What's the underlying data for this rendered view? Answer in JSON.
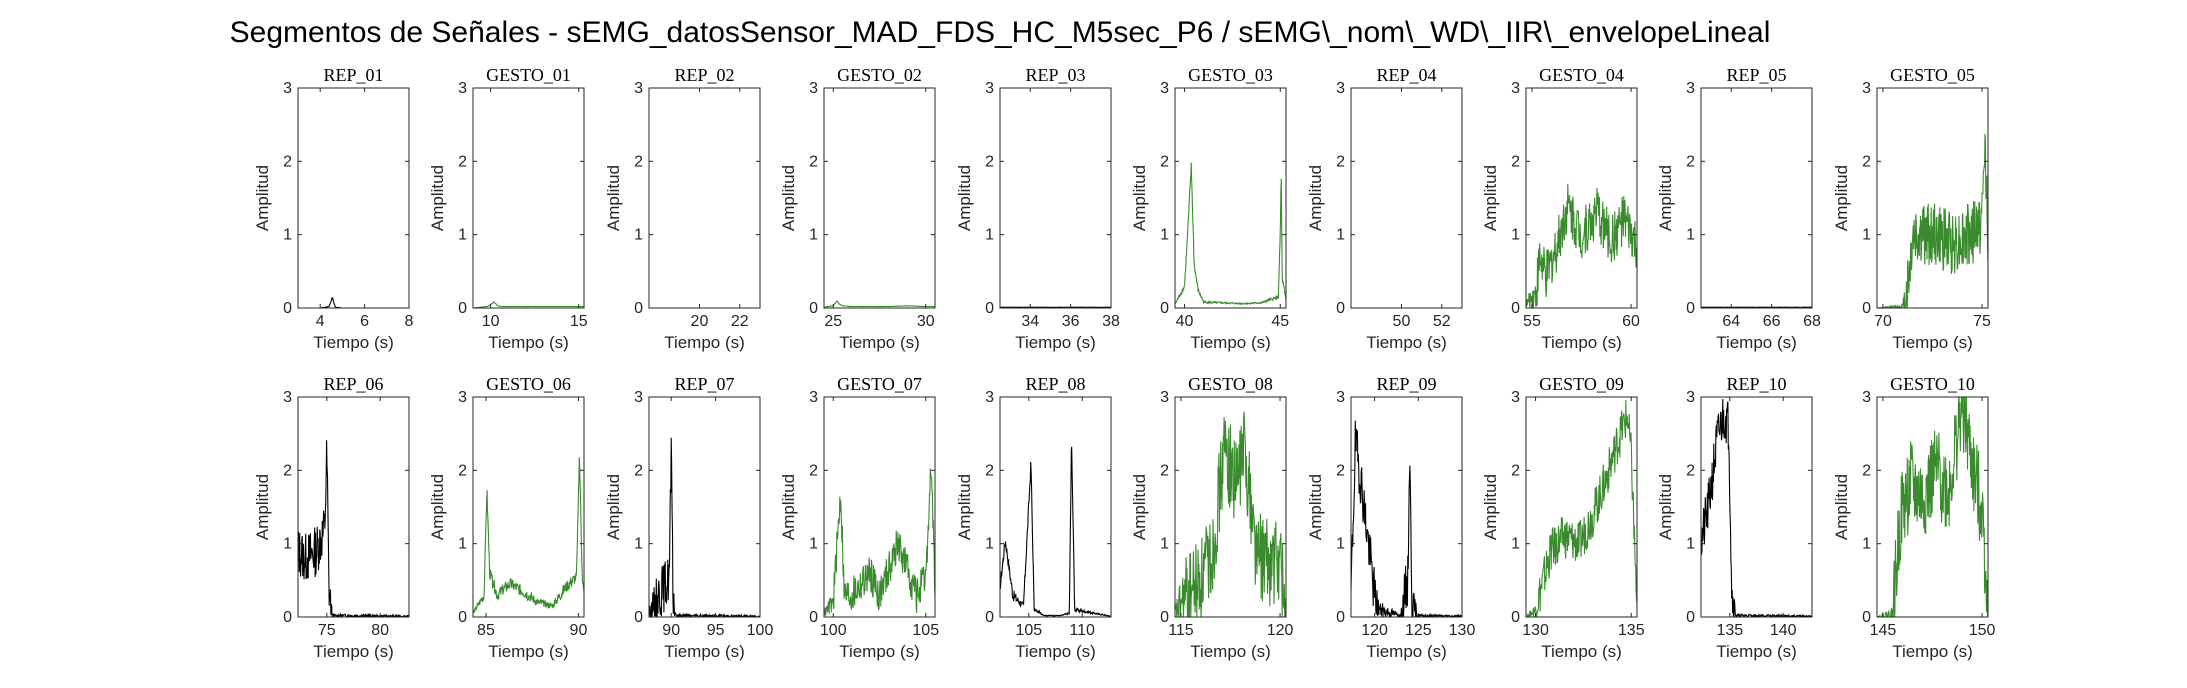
{
  "figure": {
    "title": "Segmentos de Señales - sEMG_datosSensor_MAD_FDS_HC_M5sec_P6 / sEMG\\_nom\\_WD\\_IIR\\_envelopeLineal"
  },
  "colors": {
    "rep": "#000000",
    "gesto": "#3a8a2e",
    "axis": "#262626"
  },
  "chart_data": [
    {
      "type": "line",
      "title": "REP_01",
      "xlabel": "Tiempo (s)",
      "ylabel": "Amplitud",
      "xlim": [
        3,
        8
      ],
      "ylim": [
        0,
        3
      ],
      "xticks": [
        4,
        6,
        8
      ],
      "yticks": [
        0,
        1,
        2,
        3
      ],
      "color": "#000000",
      "signal": "rep_small",
      "x": [
        3.0,
        4.0,
        4.4,
        4.5,
        4.55,
        4.62,
        4.7,
        5.0,
        8.0
      ],
      "y": [
        0.0,
        0.0,
        0.02,
        0.1,
        0.15,
        0.06,
        0.01,
        0.0,
        0.0
      ]
    },
    {
      "type": "line",
      "title": "GESTO_01",
      "xlabel": "Tiempo (s)",
      "ylabel": "Amplitud",
      "xlim": [
        9,
        15.3
      ],
      "ylim": [
        0,
        3
      ],
      "xticks": [
        10,
        15
      ],
      "yticks": [
        0,
        1,
        2,
        3
      ],
      "color": "#3a8a2e",
      "signal": "quiet",
      "x": [
        9.0,
        9.8,
        10.0,
        10.2,
        10.4,
        10.6,
        11,
        12,
        13,
        14,
        15,
        15.3
      ],
      "y": [
        0.0,
        0.02,
        0.05,
        0.08,
        0.03,
        0.02,
        0.02,
        0.02,
        0.02,
        0.02,
        0.02,
        0.02
      ]
    },
    {
      "type": "line",
      "title": "REP_02",
      "xlabel": "Tiempo (s)",
      "ylabel": "Amplitud",
      "xlim": [
        17.5,
        23
      ],
      "ylim": [
        0,
        3
      ],
      "xticks": [
        20,
        22
      ],
      "yticks": [
        0,
        1,
        2,
        3
      ],
      "color": "#000000",
      "signal": "flat",
      "x": [
        17.5,
        23.0
      ],
      "y": [
        0.0,
        0.0
      ]
    },
    {
      "type": "line",
      "title": "GESTO_02",
      "xlabel": "Tiempo (s)",
      "ylabel": "Amplitud",
      "xlim": [
        24.5,
        30.5
      ],
      "ylim": [
        0,
        3
      ],
      "xticks": [
        25,
        30
      ],
      "yticks": [
        0,
        1,
        2,
        3
      ],
      "color": "#3a8a2e",
      "signal": "quiet",
      "x": [
        24.5,
        25.0,
        25.2,
        25.3,
        25.5,
        26,
        27,
        28,
        29,
        30,
        30.5
      ],
      "y": [
        0.01,
        0.03,
        0.1,
        0.06,
        0.03,
        0.02,
        0.02,
        0.02,
        0.03,
        0.02,
        0.02
      ]
    },
    {
      "type": "line",
      "title": "REP_03",
      "xlabel": "Tiempo (s)",
      "ylabel": "Amplitud",
      "xlim": [
        32.5,
        38
      ],
      "ylim": [
        0,
        3
      ],
      "xticks": [
        34,
        36,
        38
      ],
      "yticks": [
        0,
        1,
        2,
        3
      ],
      "color": "#000000",
      "signal": "flat",
      "x": [
        32.5,
        38.0
      ],
      "y": [
        0.01,
        0.01
      ]
    },
    {
      "type": "line",
      "title": "GESTO_03",
      "xlabel": "Tiempo (s)",
      "ylabel": "Amplitud",
      "xlim": [
        39.5,
        45.3
      ],
      "ylim": [
        0,
        3
      ],
      "xticks": [
        40,
        45
      ],
      "yticks": [
        0,
        1,
        2,
        3
      ],
      "color": "#3a8a2e",
      "signal": "two_peaks",
      "x": [
        39.5,
        40.0,
        40.2,
        40.35,
        40.5,
        40.7,
        41.0,
        42,
        43,
        44,
        44.9,
        45.0,
        45.05,
        45.1,
        45.3
      ],
      "y": [
        0.05,
        0.3,
        1.2,
        1.95,
        0.6,
        0.25,
        0.08,
        0.07,
        0.06,
        0.07,
        0.15,
        1.0,
        1.9,
        0.4,
        0.1
      ]
    },
    {
      "type": "line",
      "title": "REP_04",
      "xlabel": "Tiempo (s)",
      "ylabel": "Amplitud",
      "xlim": [
        47.5,
        53
      ],
      "ylim": [
        0,
        3
      ],
      "xticks": [
        50,
        52
      ],
      "yticks": [
        0,
        1,
        2,
        3
      ],
      "color": "#000000",
      "signal": "flat",
      "x": [
        47.5,
        53.0
      ],
      "y": [
        0.0,
        0.0
      ]
    },
    {
      "type": "line",
      "title": "GESTO_04",
      "xlabel": "Tiempo (s)",
      "ylabel": "Amplitud",
      "xlim": [
        54.7,
        60.3
      ],
      "ylim": [
        0,
        3
      ],
      "xticks": [
        55,
        60
      ],
      "yticks": [
        0,
        1,
        2,
        3
      ],
      "color": "#3a8a2e",
      "signal": "noisy_mid",
      "x": [
        54.7,
        55.2,
        55.4,
        55.7,
        56.2,
        56.8,
        57.5,
        58.3,
        59.0,
        59.6,
        60.0,
        60.3
      ],
      "y": [
        0.05,
        0.2,
        0.7,
        0.4,
        0.8,
        1.4,
        1.0,
        1.3,
        0.9,
        1.2,
        1.0,
        0.8
      ]
    },
    {
      "type": "line",
      "title": "REP_05",
      "xlabel": "Tiempo (s)",
      "ylabel": "Amplitud",
      "xlim": [
        62.5,
        68
      ],
      "ylim": [
        0,
        3
      ],
      "xticks": [
        64,
        66,
        68
      ],
      "yticks": [
        0,
        1,
        2,
        3
      ],
      "color": "#000000",
      "signal": "flat",
      "x": [
        62.5,
        68.0
      ],
      "y": [
        0.01,
        0.01
      ]
    },
    {
      "type": "line",
      "title": "GESTO_05",
      "xlabel": "Tiempo (s)",
      "ylabel": "Amplitud",
      "xlim": [
        69.7,
        75.3
      ],
      "ylim": [
        0,
        3
      ],
      "xticks": [
        70,
        75
      ],
      "yticks": [
        0,
        1,
        2,
        3
      ],
      "color": "#3a8a2e",
      "signal": "noisy_high",
      "x": [
        69.7,
        71.0,
        71.3,
        71.5,
        72.5,
        73.5,
        74.5,
        75.0,
        75.15,
        75.3
      ],
      "y": [
        0.0,
        0.02,
        0.4,
        1.0,
        1.0,
        0.9,
        1.0,
        1.2,
        2.25,
        1.0
      ]
    },
    {
      "type": "line",
      "title": "REP_06",
      "xlabel": "Tiempo (s)",
      "ylabel": "Amplitud",
      "xlim": [
        72.3,
        82.7
      ],
      "ylim": [
        0,
        3
      ],
      "xticks": [
        75,
        80
      ],
      "yticks": [
        0,
        1,
        2,
        3
      ],
      "color": "#000000",
      "signal": "burst_then_flat",
      "x": [
        72.3,
        73.0,
        74.0,
        74.8,
        75.0,
        75.2,
        75.5,
        82.7
      ],
      "y": [
        0.9,
        0.8,
        0.9,
        1.2,
        2.25,
        0.4,
        0.02,
        0.01
      ]
    },
    {
      "type": "line",
      "title": "GESTO_06",
      "xlabel": "Tiempo (s)",
      "ylabel": "Amplitud",
      "xlim": [
        84.3,
        90.3
      ],
      "ylim": [
        0,
        3
      ],
      "xticks": [
        85,
        90
      ],
      "yticks": [
        0,
        1,
        2,
        3
      ],
      "color": "#3a8a2e",
      "signal": "two_peaks_body",
      "x": [
        84.3,
        84.9,
        85.05,
        85.2,
        85.6,
        86.3,
        87.0,
        87.8,
        88.6,
        89.3,
        89.9,
        90.05,
        90.2,
        90.3
      ],
      "y": [
        0.05,
        0.3,
        1.75,
        0.6,
        0.3,
        0.45,
        0.35,
        0.2,
        0.15,
        0.4,
        0.55,
        2.25,
        0.6,
        0.3
      ]
    },
    {
      "type": "line",
      "title": "REP_07",
      "xlabel": "Tiempo (s)",
      "ylabel": "Amplitud",
      "xlim": [
        87.5,
        100
      ],
      "ylim": [
        0,
        3
      ],
      "xticks": [
        90,
        95,
        100
      ],
      "yticks": [
        0,
        1,
        2,
        3
      ],
      "color": "#000000",
      "signal": "burst_then_flat",
      "x": [
        87.5,
        88.5,
        89.5,
        89.8,
        90.0,
        90.2,
        90.5,
        100.0
      ],
      "y": [
        0.05,
        0.3,
        0.45,
        0.6,
        2.25,
        0.3,
        0.02,
        0.01
      ]
    },
    {
      "type": "line",
      "title": "GESTO_07",
      "xlabel": "Tiempo (s)",
      "ylabel": "Amplitud",
      "xlim": [
        99.5,
        105.5
      ],
      "ylim": [
        0,
        3
      ],
      "xticks": [
        100,
        105
      ],
      "yticks": [
        0,
        1,
        2,
        3
      ],
      "color": "#3a8a2e",
      "signal": "peaks_mid",
      "x": [
        99.5,
        100.0,
        100.4,
        100.6,
        101,
        102,
        102.5,
        103.5,
        104.5,
        105.0,
        105.3,
        105.5
      ],
      "y": [
        0.05,
        0.2,
        1.7,
        0.3,
        0.3,
        0.6,
        0.3,
        1.0,
        0.3,
        0.5,
        2.1,
        0.3
      ]
    },
    {
      "type": "line",
      "title": "REP_08",
      "xlabel": "Tiempo (s)",
      "ylabel": "Amplitud",
      "xlim": [
        102.3,
        112.7
      ],
      "ylim": [
        0,
        3
      ],
      "xticks": [
        105,
        110
      ],
      "yticks": [
        0,
        1,
        2,
        3
      ],
      "color": "#000000",
      "signal": "three_peaks",
      "x": [
        102.3,
        102.8,
        103.5,
        104.5,
        105.2,
        105.5,
        106.5,
        108.0,
        108.8,
        109.0,
        109.3,
        112.7
      ],
      "y": [
        0.4,
        1.05,
        0.3,
        0.15,
        2.1,
        0.1,
        0.02,
        0.02,
        0.05,
        2.45,
        0.1,
        0.01
      ]
    },
    {
      "type": "line",
      "title": "GESTO_08",
      "xlabel": "Tiempo (s)",
      "ylabel": "Amplitud",
      "xlim": [
        114.7,
        120.3
      ],
      "ylim": [
        0,
        3
      ],
      "xticks": [
        115,
        120
      ],
      "yticks": [
        0,
        1,
        2,
        3
      ],
      "color": "#3a8a2e",
      "signal": "peaks_high",
      "x": [
        114.7,
        115.3,
        116.0,
        116.6,
        117.2,
        117.8,
        118.2,
        118.8,
        119.5,
        120.0,
        120.3
      ],
      "y": [
        0.05,
        0.3,
        0.5,
        0.9,
        2.3,
        1.8,
        2.35,
        0.9,
        0.7,
        0.8,
        0.05
      ]
    },
    {
      "type": "line",
      "title": "REP_09",
      "xlabel": "Tiempo (s)",
      "ylabel": "Amplitud",
      "xlim": [
        117.3,
        130
      ],
      "ylim": [
        0,
        3
      ],
      "xticks": [
        120,
        125,
        130
      ],
      "yticks": [
        0,
        1,
        2,
        3
      ],
      "color": "#000000",
      "signal": "peaks_then_flat",
      "x": [
        117.3,
        117.8,
        118.5,
        119.5,
        120.0,
        120.5,
        123.0,
        123.8,
        124.0,
        124.3,
        125.0,
        130.0
      ],
      "y": [
        0.3,
        2.4,
        1.8,
        0.8,
        0.3,
        0.1,
        0.02,
        0.5,
        2.2,
        0.2,
        0.02,
        0.01
      ]
    },
    {
      "type": "line",
      "title": "GESTO_09",
      "xlabel": "Tiempo (s)",
      "ylabel": "Amplitud",
      "xlim": [
        129.5,
        135.3
      ],
      "ylim": [
        0,
        3
      ],
      "xticks": [
        130,
        135
      ],
      "yticks": [
        0,
        1,
        2,
        3
      ],
      "color": "#3a8a2e",
      "signal": "rising",
      "x": [
        129.5,
        130.0,
        130.8,
        131.5,
        132.3,
        133.0,
        133.7,
        134.3,
        134.8,
        135.0,
        135.3
      ],
      "y": [
        0.0,
        0.1,
        0.9,
        1.1,
        1.0,
        1.4,
        1.9,
        2.4,
        2.75,
        2.2,
        0.1
      ]
    },
    {
      "type": "line",
      "title": "REP_10",
      "xlabel": "Tiempo (s)",
      "ylabel": "Amplitud",
      "xlim": [
        132.3,
        142.7
      ],
      "ylim": [
        0,
        3
      ],
      "xticks": [
        135,
        140
      ],
      "yticks": [
        0,
        1,
        2,
        3
      ],
      "color": "#000000",
      "signal": "burst_then_flat",
      "x": [
        132.3,
        133.0,
        133.8,
        134.3,
        134.6,
        134.9,
        135.2,
        135.6,
        142.7
      ],
      "y": [
        1.0,
        1.5,
        2.4,
        2.7,
        2.75,
        2.6,
        0.3,
        0.02,
        0.01
      ]
    },
    {
      "type": "line",
      "title": "GESTO_10",
      "xlabel": "Tiempo (s)",
      "ylabel": "Amplitud",
      "xlim": [
        144.7,
        150.3
      ],
      "ylim": [
        0,
        3
      ],
      "xticks": [
        145,
        150
      ],
      "yticks": [
        0,
        1,
        2,
        3
      ],
      "color": "#3a8a2e",
      "signal": "noisy_top",
      "x": [
        144.7,
        145.5,
        145.9,
        146.4,
        147.0,
        147.7,
        148.3,
        149.0,
        149.6,
        150.0,
        150.3
      ],
      "y": [
        0.0,
        0.05,
        1.4,
        1.8,
        1.6,
        2.0,
        1.7,
        2.9,
        1.9,
        1.5,
        0.1
      ]
    }
  ]
}
